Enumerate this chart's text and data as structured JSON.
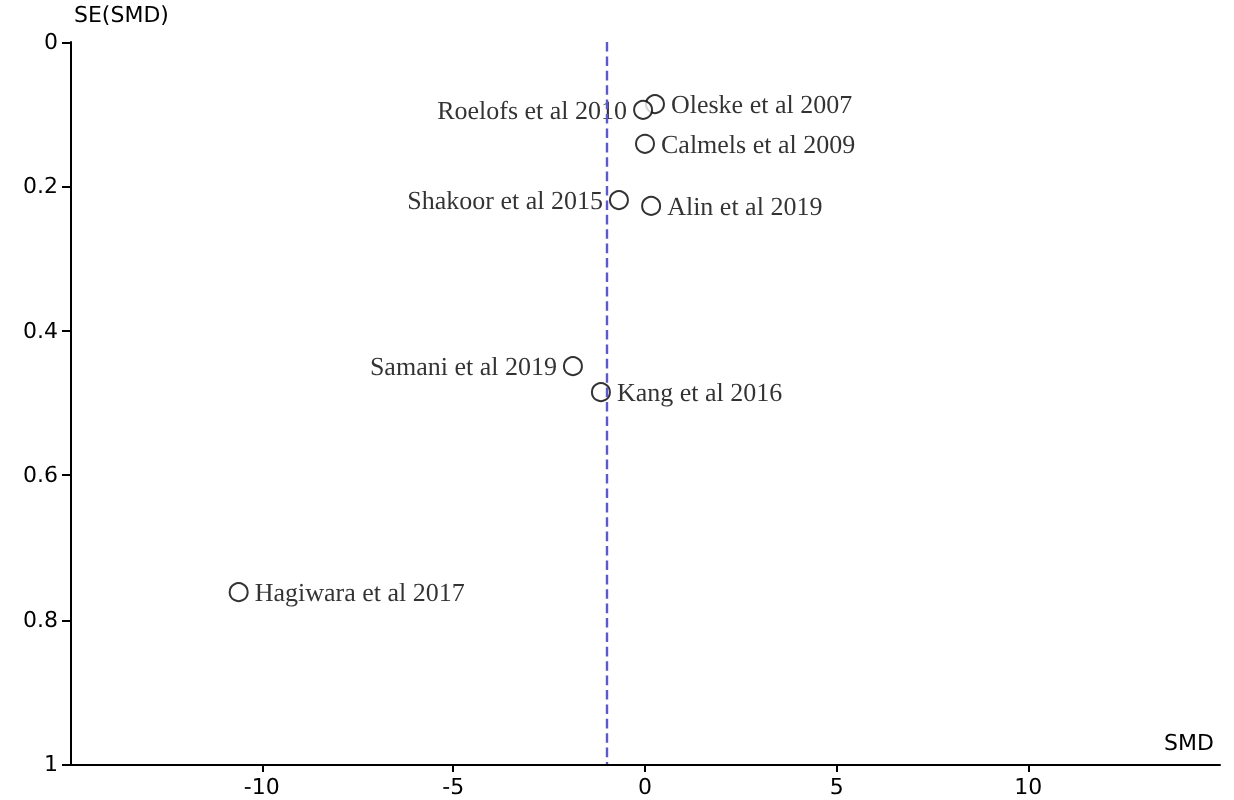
{
  "chart_data": {
    "type": "scatter",
    "xlabel": "SMD",
    "ylabel": "SE(SMD)",
    "x": [
      0.26,
      -0.05,
      0.0,
      -0.68,
      0.16,
      -1.88,
      -1.15,
      -10.6
    ],
    "values": [
      0.086,
      0.094,
      0.141,
      0.219,
      0.227,
      0.449,
      0.485,
      0.762
    ],
    "color": "#000000",
    "marker": "circle",
    "xlim": [
      -15,
      15
    ],
    "xticks": [
      -10,
      -5,
      0,
      5,
      10
    ],
    "ylim": [
      1,
      0
    ],
    "yticks": [
      0,
      0.2,
      0.4,
      0.6,
      0.8,
      1
    ],
    "grid": false,
    "ref_lines": [
      {
        "axis": "x",
        "value": -1.0,
        "color": "#5a5ac8",
        "line_style": "dashed"
      }
    ],
    "annotations": [
      {
        "text": "Oleske et al 2007",
        "x": 0.26,
        "y": 0.086
      },
      {
        "text": "Roelofs et al 2010",
        "x": -0.05,
        "y": 0.094
      },
      {
        "text": "Calmels et al 2009",
        "x": 0.0,
        "y": 0.141
      },
      {
        "text": "Shakoor et al 2015",
        "x": -0.68,
        "y": 0.219
      },
      {
        "text": "Alin et al 2019",
        "x": 0.16,
        "y": 0.227
      },
      {
        "text": "Samani et al 2019",
        "x": -1.88,
        "y": 0.449
      },
      {
        "text": "Kang et al 2016",
        "x": -1.15,
        "y": 0.485
      },
      {
        "text": "Hagiwara et al 2017",
        "x": -10.6,
        "y": 0.762
      }
    ]
  }
}
